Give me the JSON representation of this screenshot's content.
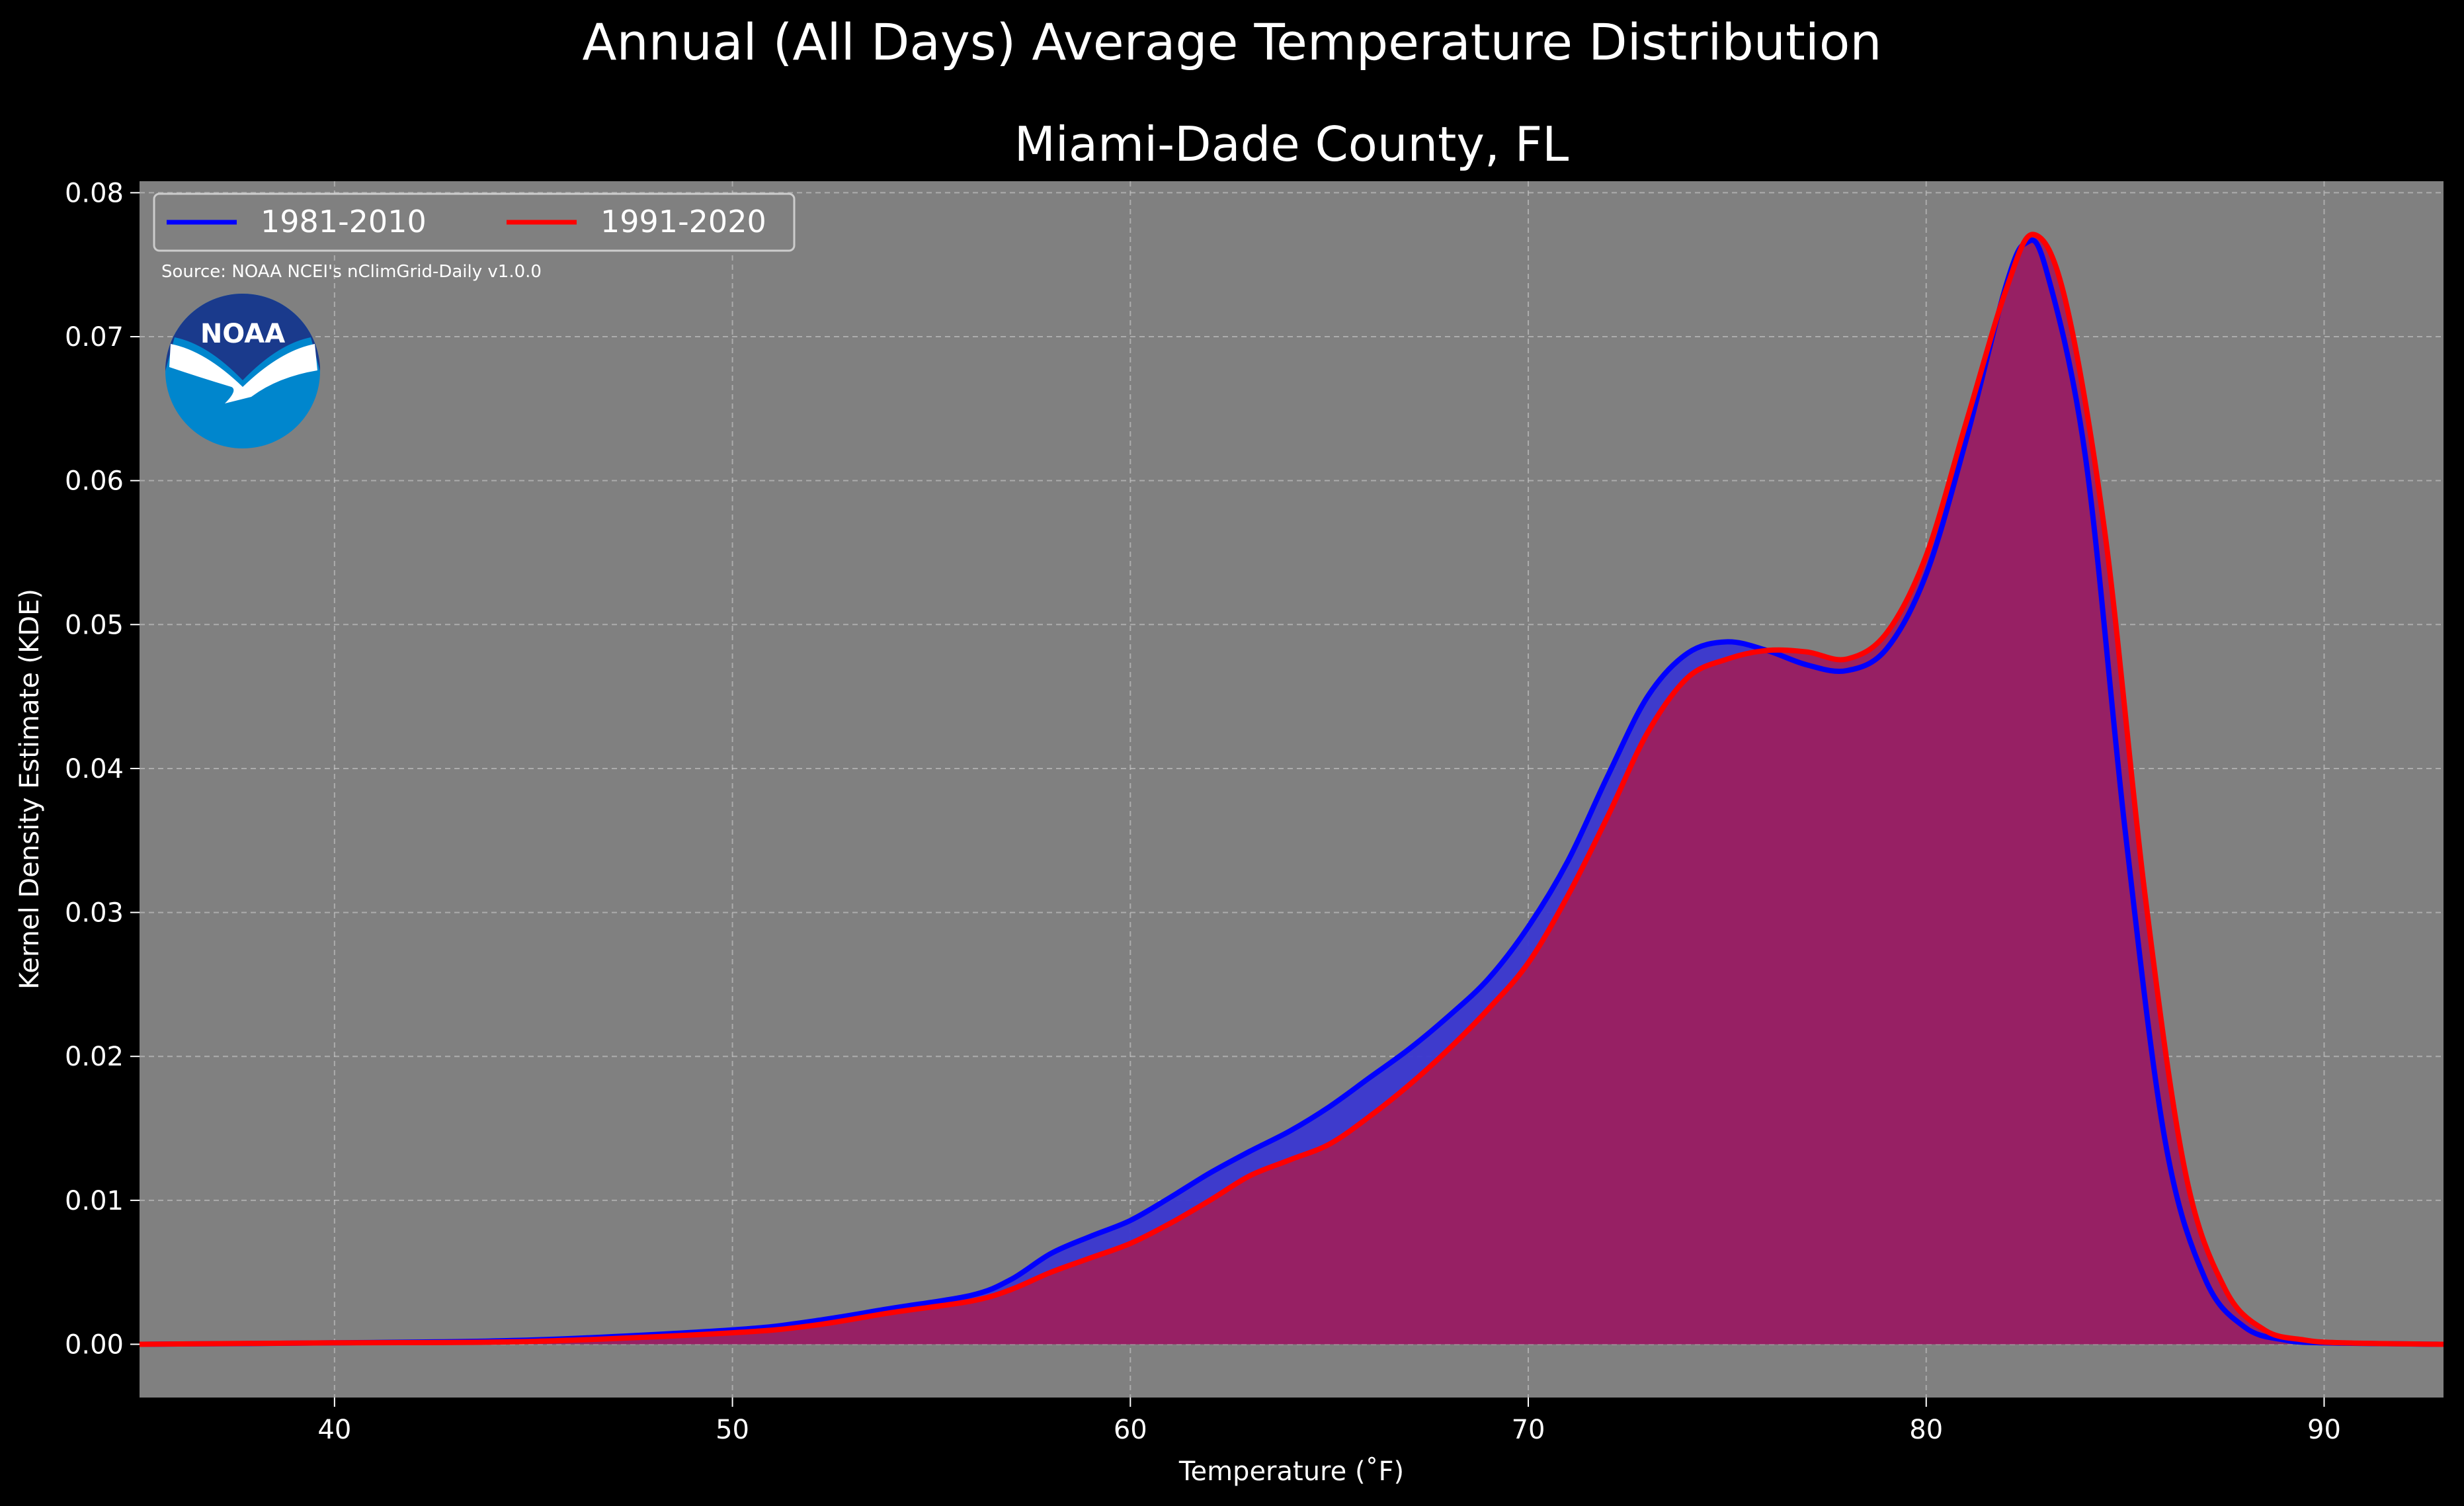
{
  "figure": {
    "suptitle": "Annual (All Days) Average Temperature Distribution",
    "source": "Source: NOAA NCEI's nClimGrid-Daily v1.0.0",
    "logo_text": "NOAA",
    "background": "#000000",
    "plot_background": "#808080"
  },
  "chart_data": {
    "type": "area",
    "title": "Miami-Dade County, FL",
    "xlabel": "Temperature (˚F)",
    "ylabel": "Kernel Density Estimate (KDE)",
    "xlim": [
      35.1,
      93.0
    ],
    "ylim": [
      -0.0037,
      0.0808
    ],
    "xticks": [
      "40",
      "50",
      "60",
      "70",
      "80",
      "90"
    ],
    "yticks": [
      "0.00",
      "0.01",
      "0.02",
      "0.03",
      "0.04",
      "0.05",
      "0.06",
      "0.07",
      "0.08"
    ],
    "grid": true,
    "legend_position": "upper-left",
    "series": [
      {
        "name": "1981-2010",
        "line_color": "#0000ff",
        "fill_color": "#3a37d0",
        "x": [
          35,
          40,
          45,
          50,
          52,
          54,
          56,
          57,
          58,
          59,
          60,
          61,
          62,
          63,
          64,
          65,
          66,
          67,
          68,
          69,
          70,
          71,
          72,
          73,
          74,
          75,
          76,
          77,
          78,
          79,
          80,
          81,
          82,
          82.5,
          83,
          84,
          85,
          86,
          87,
          88,
          89,
          90,
          93
        ],
        "y": [
          0.0,
          0.0001,
          0.0003,
          0.001,
          0.0016,
          0.0025,
          0.0034,
          0.0045,
          0.0063,
          0.0075,
          0.0086,
          0.0102,
          0.0119,
          0.0134,
          0.0148,
          0.0165,
          0.0185,
          0.0205,
          0.0228,
          0.0254,
          0.029,
          0.0336,
          0.0395,
          0.045,
          0.048,
          0.0488,
          0.0482,
          0.0472,
          0.0468,
          0.0483,
          0.0535,
          0.0628,
          0.0735,
          0.0765,
          0.0748,
          0.0617,
          0.0357,
          0.0142,
          0.0046,
          0.0012,
          0.0003,
          0.0001,
          0.0
        ]
      },
      {
        "name": "1991-2020",
        "line_color": "#ff0000",
        "fill_color": "#9c1f5e",
        "x": [
          35,
          40,
          45,
          50,
          52,
          54,
          56,
          57,
          58,
          59,
          60,
          61,
          62,
          63,
          64,
          65,
          66,
          67,
          68,
          69,
          70,
          71,
          72,
          73,
          74,
          75,
          76,
          77,
          78,
          79,
          80,
          81,
          82,
          82.7,
          83.5,
          84.5,
          85.5,
          86.5,
          87.5,
          88.5,
          89.5,
          90.5,
          93
        ],
        "y": [
          0.0,
          0.0001,
          0.0002,
          0.0008,
          0.0013,
          0.0022,
          0.003,
          0.0038,
          0.005,
          0.006,
          0.007,
          0.0084,
          0.01,
          0.0117,
          0.0128,
          0.0139,
          0.0158,
          0.018,
          0.0205,
          0.0233,
          0.0265,
          0.0312,
          0.0367,
          0.0425,
          0.0463,
          0.0476,
          0.0482,
          0.0481,
          0.0476,
          0.0494,
          0.0548,
          0.064,
          0.0732,
          0.0771,
          0.0725,
          0.0562,
          0.0312,
          0.0121,
          0.0039,
          0.001,
          0.0003,
          0.0001,
          0.0
        ]
      }
    ]
  }
}
